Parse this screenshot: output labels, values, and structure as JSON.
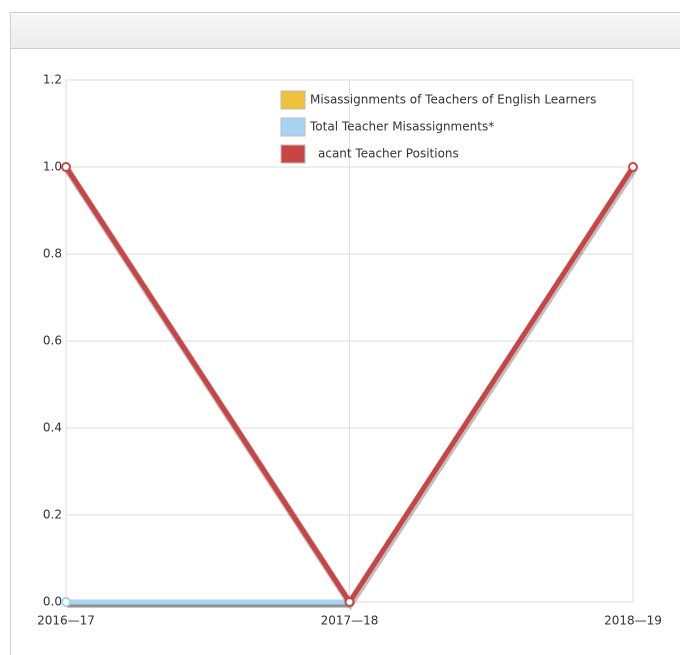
{
  "chart_data": {
    "type": "line",
    "categories": [
      "2016—17",
      "2017—18",
      "2018—19"
    ],
    "series": [
      {
        "name": "Misassignments of Teachers of English Learners",
        "color": "#f0c23c",
        "values": [
          0,
          0,
          null
        ]
      },
      {
        "name": "Total Teacher Misassignments*",
        "color": "#a9d3f2",
        "values": [
          0,
          0,
          null
        ]
      },
      {
        "name": "acant Teacher Positions",
        "color": "#c94545",
        "values": [
          1,
          0,
          1
        ]
      }
    ],
    "ylim": [
      0,
      1.2
    ],
    "yticks": [
      {
        "value": 0,
        "label": "0.0"
      },
      0.2,
      0.4,
      0.6,
      0.8,
      {
        "value": 1,
        "label": "1.0"
      },
      1.2
    ],
    "grid": true
  }
}
